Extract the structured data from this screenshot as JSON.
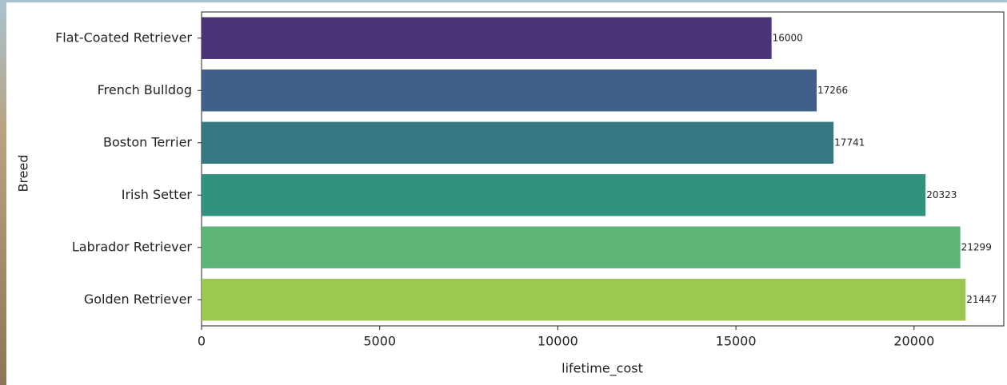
{
  "chart_data": {
    "type": "barh",
    "categories": [
      "Flat-Coated Retriever",
      "French Bulldog",
      "Boston Terrier",
      "Irish Setter",
      "Labrador Retriever",
      "Golden Retriever"
    ],
    "values": [
      16000,
      17266,
      17741,
      20323,
      21299,
      21447
    ],
    "colors": [
      "#4b3377",
      "#416089",
      "#357a83",
      "#31927f",
      "#5cb477",
      "#9cc84f"
    ],
    "xlim": [
      0,
      22519
    ],
    "xticks": [
      0,
      5000,
      10000,
      15000,
      20000
    ],
    "xlabel": "lifetime_cost",
    "ylabel": "Breed"
  }
}
